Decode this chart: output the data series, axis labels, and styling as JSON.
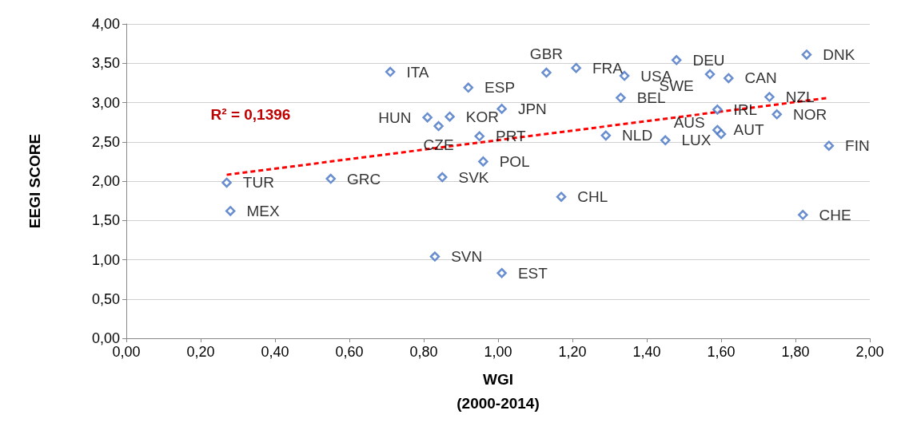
{
  "chart_data": {
    "type": "scatter",
    "xlabel": "WGI\n(2000-2014)",
    "ylabel": "EEGI SCORE",
    "grid": "y",
    "marker": "diamond",
    "xlim": [
      0,
      2
    ],
    "ylim": [
      0,
      4
    ],
    "xticks": [
      {
        "value": 0,
        "label": "0,00"
      },
      {
        "value": 0.2,
        "label": "0,20"
      },
      {
        "value": 0.4,
        "label": "0,40"
      },
      {
        "value": 0.6,
        "label": "0,60"
      },
      {
        "value": 0.8,
        "label": "0,80"
      },
      {
        "value": 1,
        "label": "1,00"
      },
      {
        "value": 1.2,
        "label": "1,20"
      },
      {
        "value": 1.4,
        "label": "1,40"
      },
      {
        "value": 1.6,
        "label": "1,60"
      },
      {
        "value": 1.8,
        "label": "1,80"
      },
      {
        "value": 2,
        "label": "2,00"
      }
    ],
    "yticks": [
      {
        "value": 0,
        "label": "0,00"
      },
      {
        "value": 0.5,
        "label": "0,50"
      },
      {
        "value": 1,
        "label": "1,00"
      },
      {
        "value": 1.5,
        "label": "1,50"
      },
      {
        "value": 2,
        "label": "2,00"
      },
      {
        "value": 2.5,
        "label": "2,50"
      },
      {
        "value": 3,
        "label": "3,00"
      },
      {
        "value": 3.5,
        "label": "3,50"
      },
      {
        "value": 4,
        "label": "4,00"
      }
    ],
    "series": [
      {
        "type": "scatter",
        "color": "#4472c4",
        "x": [
          0.27,
          0.28,
          0.55,
          0.71,
          0.81,
          0.84,
          0.87,
          0.83,
          0.85,
          0.92,
          0.95,
          1.01,
          0.96,
          1.01,
          1.13,
          1.21,
          1.17,
          1.29,
          1.33,
          1.34,
          1.45,
          1.48,
          1.57,
          1.59,
          1.59,
          1.6,
          1.62,
          1.73,
          1.75,
          1.83,
          1.89,
          1.82
        ],
        "values": [
          1.98,
          1.62,
          2.03,
          3.39,
          2.81,
          2.7,
          2.82,
          1.04,
          2.05,
          3.19,
          2.57,
          2.92,
          2.25,
          0.83,
          3.38,
          3.44,
          1.8,
          2.58,
          3.06,
          3.34,
          2.52,
          3.54,
          3.36,
          2.91,
          2.65,
          2.6,
          3.31,
          3.07,
          2.85,
          3.61,
          2.45,
          1.57
        ]
      },
      {
        "type": "line",
        "color": "#ff0000",
        "line_style": "dashed",
        "marker": "none",
        "x": [
          0.27,
          1.89
        ],
        "values": [
          2.08,
          3.06
        ]
      }
    ],
    "annotations": [
      {
        "text": "TUR",
        "x": 0.27,
        "y": 1.98
      },
      {
        "text": "MEX",
        "x": 0.28,
        "y": 1.62
      },
      {
        "text": "GRC",
        "x": 0.55,
        "y": 2.03
      },
      {
        "text": "ITA",
        "x": 0.71,
        "y": 3.39
      },
      {
        "text": "HUN",
        "x": 0.81,
        "y": 2.81
      },
      {
        "text": "CZE",
        "x": 0.84,
        "y": 2.7
      },
      {
        "text": "KOR",
        "x": 0.87,
        "y": 2.82
      },
      {
        "text": "SVN",
        "x": 0.83,
        "y": 1.04
      },
      {
        "text": "SVK",
        "x": 0.85,
        "y": 2.05
      },
      {
        "text": "ESP",
        "x": 0.92,
        "y": 3.19
      },
      {
        "text": "PRT",
        "x": 0.95,
        "y": 2.57
      },
      {
        "text": "JPN",
        "x": 1.01,
        "y": 2.92
      },
      {
        "text": "POL",
        "x": 0.96,
        "y": 2.25
      },
      {
        "text": "EST",
        "x": 1.01,
        "y": 0.83
      },
      {
        "text": "GBR",
        "x": 1.13,
        "y": 3.38
      },
      {
        "text": "FRA",
        "x": 1.21,
        "y": 3.44
      },
      {
        "text": "CHL",
        "x": 1.17,
        "y": 1.8
      },
      {
        "text": "NLD",
        "x": 1.29,
        "y": 2.58
      },
      {
        "text": "BEL",
        "x": 1.33,
        "y": 3.06
      },
      {
        "text": "USA",
        "x": 1.34,
        "y": 3.34
      },
      {
        "text": "LUX",
        "x": 1.45,
        "y": 2.52
      },
      {
        "text": "DEU",
        "x": 1.48,
        "y": 3.54
      },
      {
        "text": "SWE",
        "x": 1.57,
        "y": 3.36
      },
      {
        "text": "IRL",
        "x": 1.59,
        "y": 2.91
      },
      {
        "text": "AUT",
        "x": 1.59,
        "y": 2.65
      },
      {
        "text": "AUS",
        "x": 1.6,
        "y": 2.6
      },
      {
        "text": "CAN",
        "x": 1.62,
        "y": 3.31
      },
      {
        "text": "NZL",
        "x": 1.73,
        "y": 3.07
      },
      {
        "text": "NOR",
        "x": 1.75,
        "y": 2.85
      },
      {
        "text": "DNK",
        "x": 1.83,
        "y": 3.61
      },
      {
        "text": "FIN",
        "x": 1.89,
        "y": 2.45
      },
      {
        "text": "CHE",
        "x": 1.82,
        "y": 1.57
      },
      "R² = 0,1396"
    ]
  }
}
